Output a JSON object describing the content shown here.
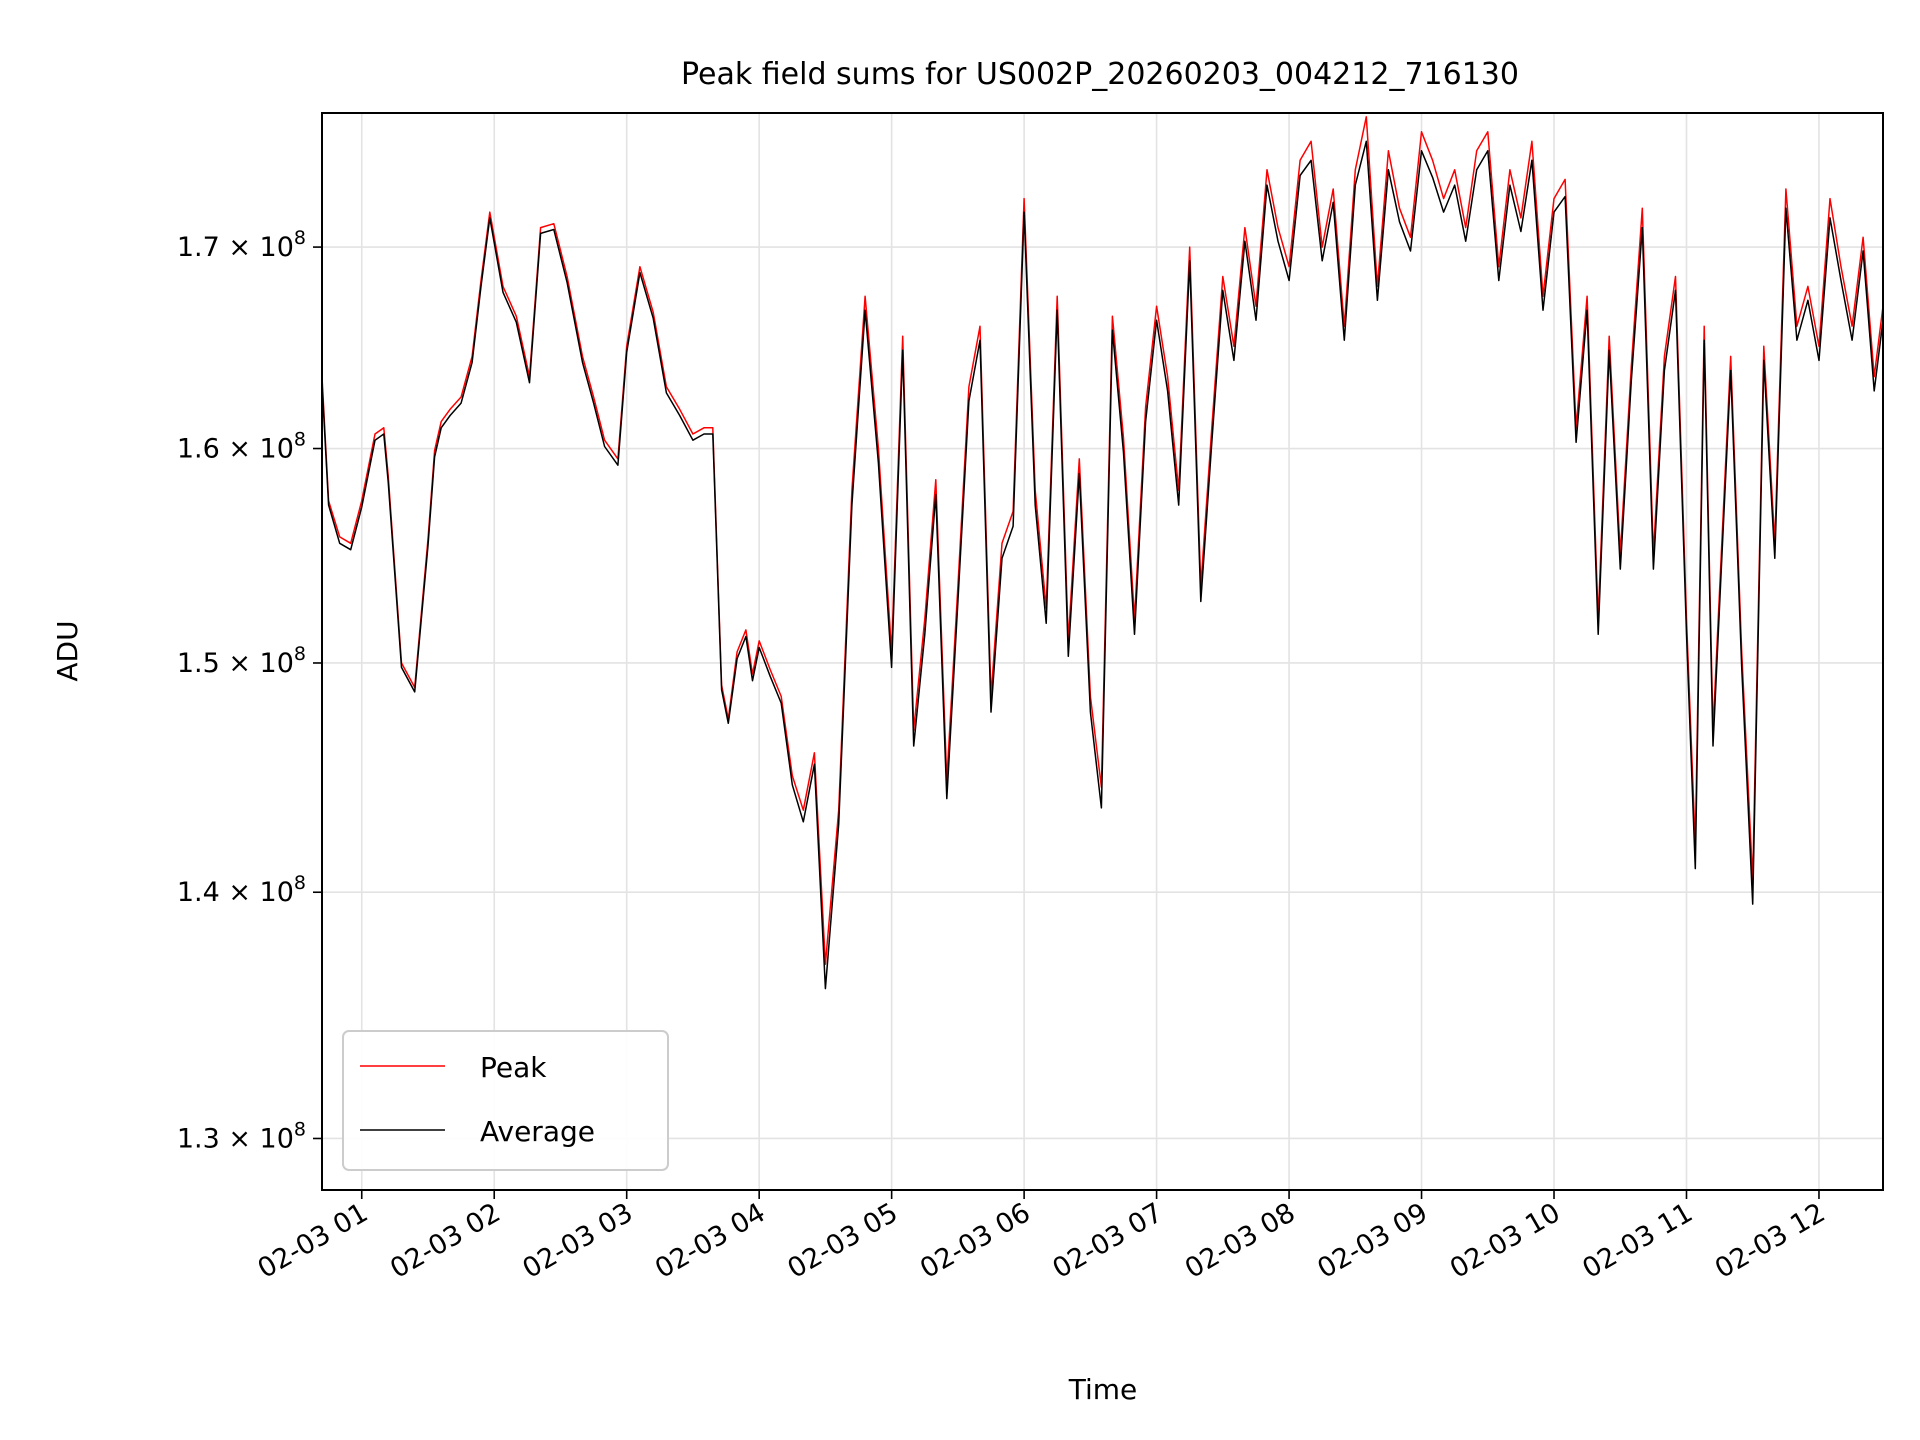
{
  "chart_data": {
    "type": "line",
    "title": "Peak field sums for US002P_20260203_004212_716130",
    "xlabel": "Time",
    "ylabel": "ADU",
    "y_scale": "log",
    "xlim": [
      "02-03 00:42",
      "02-03 12:29"
    ],
    "ylim": [
      128000000,
      177000000
    ],
    "grid": true,
    "legend_position": "lower-left",
    "x_ticks": [
      {
        "value": "02-03 01",
        "label": "02-03 01"
      },
      {
        "value": "02-03 02",
        "label": "02-03 02"
      },
      {
        "value": "02-03 03",
        "label": "02-03 03"
      },
      {
        "value": "02-03 04",
        "label": "02-03 04"
      },
      {
        "value": "02-03 05",
        "label": "02-03 05"
      },
      {
        "value": "02-03 06",
        "label": "02-03 06"
      },
      {
        "value": "02-03 07",
        "label": "02-03 07"
      },
      {
        "value": "02-03 08",
        "label": "02-03 08"
      },
      {
        "value": "02-03 09",
        "label": "02-03 09"
      },
      {
        "value": "02-03 10",
        "label": "02-03 10"
      },
      {
        "value": "02-03 11",
        "label": "02-03 11"
      },
      {
        "value": "02-03 12",
        "label": "02-03 12"
      }
    ],
    "y_ticks": [
      {
        "value": 130000000,
        "mantissa": "1.3",
        "base": "10",
        "exponent": "8"
      },
      {
        "value": 140000000,
        "mantissa": "1.4",
        "base": "10",
        "exponent": "8"
      },
      {
        "value": 150000000,
        "mantissa": "1.5",
        "base": "10",
        "exponent": "8"
      },
      {
        "value": 160000000,
        "mantissa": "1.6",
        "base": "10",
        "exponent": "8"
      },
      {
        "value": 170000000,
        "mantissa": "1.7",
        "base": "10",
        "exponent": "8"
      }
    ],
    "series": [
      {
        "name": "Peak",
        "color": "#ff0000"
      },
      {
        "name": "Average",
        "color": "#000000"
      }
    ],
    "x": [
      "02-03 00:42",
      "02-03 00:45",
      "02-03 00:50",
      "02-03 00:55",
      "02-03 01:00",
      "02-03 01:06",
      "02-03 01:10",
      "02-03 01:12",
      "02-03 01:18",
      "02-03 01:24",
      "02-03 01:30",
      "02-03 01:33",
      "02-03 01:36",
      "02-03 01:40",
      "02-03 01:45",
      "02-03 01:50",
      "02-03 01:54",
      "02-03 01:58",
      "02-03 02:04",
      "02-03 02:10",
      "02-03 02:16",
      "02-03 02:21",
      "02-03 02:27",
      "02-03 02:33",
      "02-03 02:40",
      "02-03 02:45",
      "02-03 02:50",
      "02-03 02:56",
      "02-03 03:00",
      "02-03 03:06",
      "02-03 03:12",
      "02-03 03:18",
      "02-03 03:24",
      "02-03 03:30",
      "02-03 03:35",
      "02-03 03:39",
      "02-03 03:43",
      "02-03 03:46",
      "02-03 03:50",
      "02-03 03:54",
      "02-03 03:57",
      "02-03 04:00",
      "02-03 04:05",
      "02-03 04:10",
      "02-03 04:15",
      "02-03 04:20",
      "02-03 04:25",
      "02-03 04:30",
      "02-03 04:36",
      "02-03 04:42",
      "02-03 04:48",
      "02-03 04:54",
      "02-03 05:00",
      "02-03 05:05",
      "02-03 05:10",
      "02-03 05:15",
      "02-03 05:20",
      "02-03 05:25",
      "02-03 05:30",
      "02-03 05:35",
      "02-03 05:40",
      "02-03 05:45",
      "02-03 05:50",
      "02-03 05:55",
      "02-03 06:00",
      "02-03 06:05",
      "02-03 06:10",
      "02-03 06:15",
      "02-03 06:20",
      "02-03 06:25",
      "02-03 06:30",
      "02-03 06:35",
      "02-03 06:40",
      "02-03 06:45",
      "02-03 06:50",
      "02-03 06:55",
      "02-03 07:00",
      "02-03 07:05",
      "02-03 07:10",
      "02-03 07:15",
      "02-03 07:20",
      "02-03 07:25",
      "02-03 07:30",
      "02-03 07:35",
      "02-03 07:40",
      "02-03 07:45",
      "02-03 07:50",
      "02-03 07:55",
      "02-03 08:00",
      "02-03 08:05",
      "02-03 08:10",
      "02-03 08:15",
      "02-03 08:20",
      "02-03 08:25",
      "02-03 08:30",
      "02-03 08:35",
      "02-03 08:40",
      "02-03 08:45",
      "02-03 08:50",
      "02-03 08:55",
      "02-03 09:00",
      "02-03 09:05",
      "02-03 09:10",
      "02-03 09:15",
      "02-03 09:20",
      "02-03 09:25",
      "02-03 09:30",
      "02-03 09:35",
      "02-03 09:40",
      "02-03 09:45",
      "02-03 09:50",
      "02-03 09:55",
      "02-03 10:00",
      "02-03 10:05",
      "02-03 10:10",
      "02-03 10:15",
      "02-03 10:20",
      "02-03 10:25",
      "02-03 10:30",
      "02-03 10:35",
      "02-03 10:40",
      "02-03 10:45",
      "02-03 10:50",
      "02-03 10:55",
      "02-03 11:00",
      "02-03 11:04",
      "02-03 11:08",
      "02-03 11:12",
      "02-03 11:16",
      "02-03 11:20",
      "02-03 11:25",
      "02-03 11:30",
      "02-03 11:35",
      "02-03 11:40",
      "02-03 11:45",
      "02-03 11:50",
      "02-03 11:55",
      "02-03 12:00",
      "02-03 12:05",
      "02-03 12:10",
      "02-03 12:15",
      "02-03 12:20",
      "02-03 12:25",
      "02-03 12:29"
    ],
    "peak": [
      163.5,
      157.5,
      155.8,
      155.5,
      157.5,
      160.7,
      161.0,
      158.7,
      150.0,
      148.9,
      155.7,
      159.9,
      161.3,
      161.9,
      162.5,
      164.5,
      168.3,
      171.8,
      168.0,
      166.5,
      163.5,
      171.0,
      171.2,
      168.5,
      164.5,
      162.5,
      160.4,
      159.5,
      165.0,
      169.0,
      166.7,
      163.0,
      161.9,
      160.7,
      161.0,
      161.0,
      149.0,
      147.5,
      150.5,
      151.5,
      149.5,
      151.0,
      149.7,
      148.5,
      145.0,
      143.5,
      146.0,
      137.0,
      143.5,
      158.0,
      167.5,
      160.0,
      150.5,
      165.5,
      147.0,
      152.0,
      158.5,
      144.8,
      153.5,
      163.0,
      166.0,
      148.5,
      155.5,
      157.0,
      172.5,
      158.0,
      152.5,
      167.5,
      151.0,
      159.5,
      148.5,
      144.5,
      166.5,
      160.5,
      152.0,
      162.0,
      167.0,
      163.5,
      158.0,
      170.0,
      153.5,
      161.0,
      168.5,
      165.0,
      171.0,
      167.0,
      174.0,
      171.0,
      169.0,
      174.5,
      175.5,
      170.0,
      173.0,
      166.0,
      174.0,
      176.8,
      168.0,
      175.0,
      172.0,
      170.5,
      176.0,
      174.5,
      172.5,
      174.0,
      171.0,
      175.0,
      176.0,
      169.0,
      174.0,
      171.5,
      175.5,
      167.5,
      172.5,
      173.5,
      161.0,
      167.5,
      152.0,
      165.5,
      155.0,
      164.0,
      172.0,
      155.0,
      164.5,
      168.5,
      152.0,
      142.0,
      166.0,
      147.0,
      155.5,
      164.5,
      150.5,
      140.5,
      165.0,
      155.5,
      173.0,
      166.0,
      168.0,
      165.0,
      172.5,
      169.0,
      166.0,
      170.5,
      163.5,
      167.0
    ],
    "average": [
      163.2,
      157.3,
      155.5,
      155.2,
      157.2,
      160.4,
      160.7,
      158.4,
      149.8,
      148.7,
      155.4,
      159.6,
      161.0,
      161.6,
      162.2,
      164.2,
      168.0,
      171.5,
      167.7,
      166.2,
      163.2,
      170.7,
      170.9,
      168.2,
      164.2,
      162.2,
      160.1,
      159.2,
      164.7,
      168.7,
      166.4,
      162.7,
      161.6,
      160.4,
      160.7,
      160.7,
      148.8,
      147.3,
      150.2,
      151.2,
      149.2,
      150.7,
      149.4,
      148.2,
      144.6,
      143.0,
      145.5,
      136.0,
      142.9,
      157.3,
      166.8,
      159.3,
      149.8,
      164.8,
      146.3,
      151.3,
      157.8,
      144.0,
      152.8,
      162.3,
      165.3,
      147.8,
      154.8,
      156.3,
      171.8,
      157.3,
      151.8,
      166.8,
      150.3,
      158.8,
      147.8,
      143.6,
      165.8,
      159.8,
      151.3,
      161.3,
      166.3,
      162.8,
      157.3,
      169.3,
      152.8,
      160.3,
      167.8,
      164.3,
      170.3,
      166.3,
      173.2,
      170.3,
      168.3,
      173.7,
      174.5,
      169.3,
      172.3,
      165.3,
      173.2,
      175.5,
      167.3,
      174.0,
      171.3,
      169.8,
      175.0,
      173.6,
      171.8,
      173.2,
      170.3,
      174.0,
      175.0,
      168.3,
      173.2,
      170.8,
      174.5,
      166.8,
      171.8,
      172.6,
      160.3,
      166.8,
      151.3,
      164.8,
      154.3,
      163.3,
      171.0,
      154.3,
      163.8,
      167.8,
      151.3,
      141.0,
      165.3,
      146.3,
      154.8,
      163.8,
      149.8,
      139.5,
      164.3,
      154.8,
      172.0,
      165.3,
      167.3,
      164.3,
      171.5,
      168.3,
      165.3,
      169.8,
      162.8,
      166.3
    ]
  },
  "value_unit_note_hidden": null
}
